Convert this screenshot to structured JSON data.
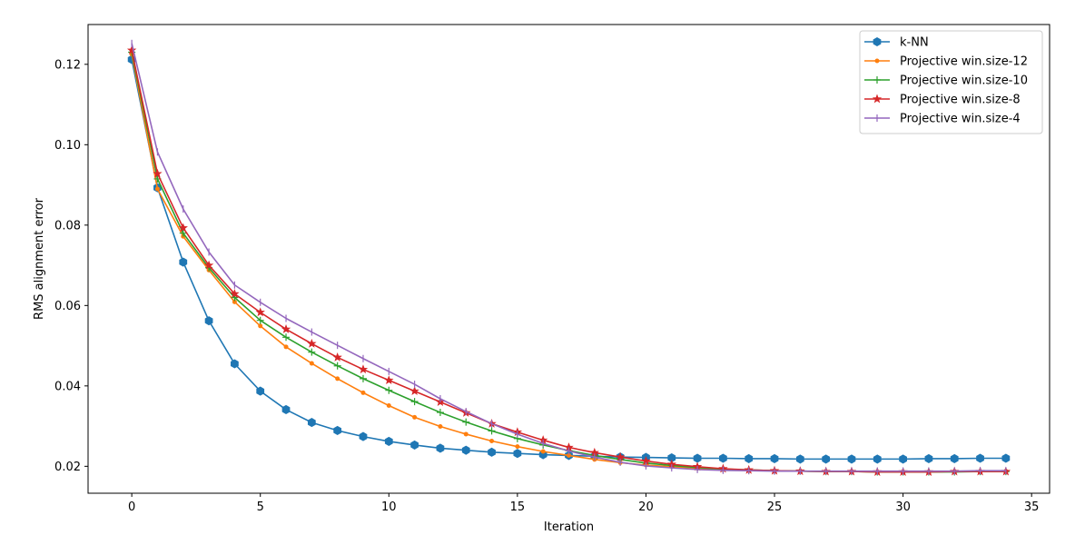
{
  "chart_data": {
    "type": "line",
    "title": "",
    "xlabel": "Iteration",
    "ylabel": "RMS alignment error",
    "xlim": [
      -1.7,
      35.7
    ],
    "ylim": [
      0.0133,
      0.1299
    ],
    "xticks": [
      0,
      5,
      10,
      15,
      20,
      25,
      30,
      35
    ],
    "xtick_labels": [
      "0",
      "5",
      "10",
      "15",
      "20",
      "25",
      "30",
      "35"
    ],
    "yticks": [
      0.02,
      0.04,
      0.06,
      0.08,
      0.1,
      0.12
    ],
    "ytick_labels": [
      "0.02",
      "0.04",
      "0.06",
      "0.08",
      "0.10",
      "0.12"
    ],
    "grid": false,
    "legend_position": "top-right",
    "x": [
      0,
      1,
      2,
      3,
      4,
      5,
      6,
      7,
      8,
      9,
      10,
      11,
      12,
      13,
      14,
      15,
      16,
      17,
      18,
      19,
      20,
      21,
      22,
      23,
      24,
      25,
      26,
      27,
      28,
      29,
      30,
      31,
      32,
      33,
      34
    ],
    "series": [
      {
        "name": "k-NN",
        "color": "#1f77b4",
        "marker": "hexagon",
        "values": [
          0.1212,
          0.0893,
          0.0708,
          0.0562,
          0.0455,
          0.0387,
          0.0341,
          0.0309,
          0.0289,
          0.0274,
          0.0262,
          0.0253,
          0.0245,
          0.024,
          0.0235,
          0.0232,
          0.0229,
          0.0227,
          0.0225,
          0.0223,
          0.0222,
          0.0221,
          0.022,
          0.022,
          0.0219,
          0.0219,
          0.0218,
          0.0218,
          0.0218,
          0.0218,
          0.0218,
          0.0219,
          0.0219,
          0.022,
          0.022
        ]
      },
      {
        "name": "Projective win.size-12",
        "color": "#ff7f0e",
        "marker": "point",
        "values": [
          0.1225,
          0.089,
          0.0772,
          0.0688,
          0.0609,
          0.0549,
          0.0497,
          0.0456,
          0.0418,
          0.0383,
          0.0351,
          0.0322,
          0.0299,
          0.028,
          0.0263,
          0.0249,
          0.0237,
          0.0227,
          0.0217,
          0.0209,
          0.0203,
          0.0199,
          0.0195,
          0.0192,
          0.019,
          0.0189,
          0.0188,
          0.0187,
          0.0187,
          0.0186,
          0.0186,
          0.0186,
          0.0187,
          0.0187,
          0.0188
        ]
      },
      {
        "name": "Projective win.size-10",
        "color": "#2ca02c",
        "marker": "plus",
        "values": [
          0.123,
          0.0915,
          0.078,
          0.0694,
          0.062,
          0.0563,
          0.0521,
          0.0484,
          0.045,
          0.0418,
          0.0389,
          0.0361,
          0.0334,
          0.031,
          0.0288,
          0.0269,
          0.0253,
          0.0239,
          0.0227,
          0.0217,
          0.0208,
          0.0202,
          0.0197,
          0.0193,
          0.0191,
          0.0189,
          0.0188,
          0.0187,
          0.0187,
          0.0186,
          0.0186,
          0.0186,
          0.0186,
          0.0187,
          0.0187
        ]
      },
      {
        "name": "Projective win.size-8",
        "color": "#d62728",
        "marker": "star",
        "values": [
          0.1235,
          0.0928,
          0.0793,
          0.07,
          0.0629,
          0.0583,
          0.0541,
          0.0505,
          0.0471,
          0.0441,
          0.0414,
          0.0387,
          0.036,
          0.0333,
          0.0306,
          0.0285,
          0.0265,
          0.0247,
          0.0234,
          0.0223,
          0.0213,
          0.0205,
          0.0199,
          0.0194,
          0.0191,
          0.0189,
          0.0188,
          0.0187,
          0.0187,
          0.0186,
          0.0186,
          0.0186,
          0.0187,
          0.0187,
          0.0187
        ]
      },
      {
        "name": "Projective win.size-4",
        "color": "#9467bd",
        "marker": "vline",
        "values": [
          0.1252,
          0.0982,
          0.084,
          0.0733,
          0.0651,
          0.0608,
          0.0568,
          0.0534,
          0.0501,
          0.0468,
          0.0436,
          0.0404,
          0.0368,
          0.0336,
          0.0306,
          0.028,
          0.0257,
          0.0238,
          0.0223,
          0.021,
          0.0201,
          0.0196,
          0.0192,
          0.019,
          0.0189,
          0.0188,
          0.0188,
          0.0188,
          0.0188,
          0.0188,
          0.0188,
          0.0188,
          0.0188,
          0.0189,
          0.0189
        ]
      }
    ]
  }
}
